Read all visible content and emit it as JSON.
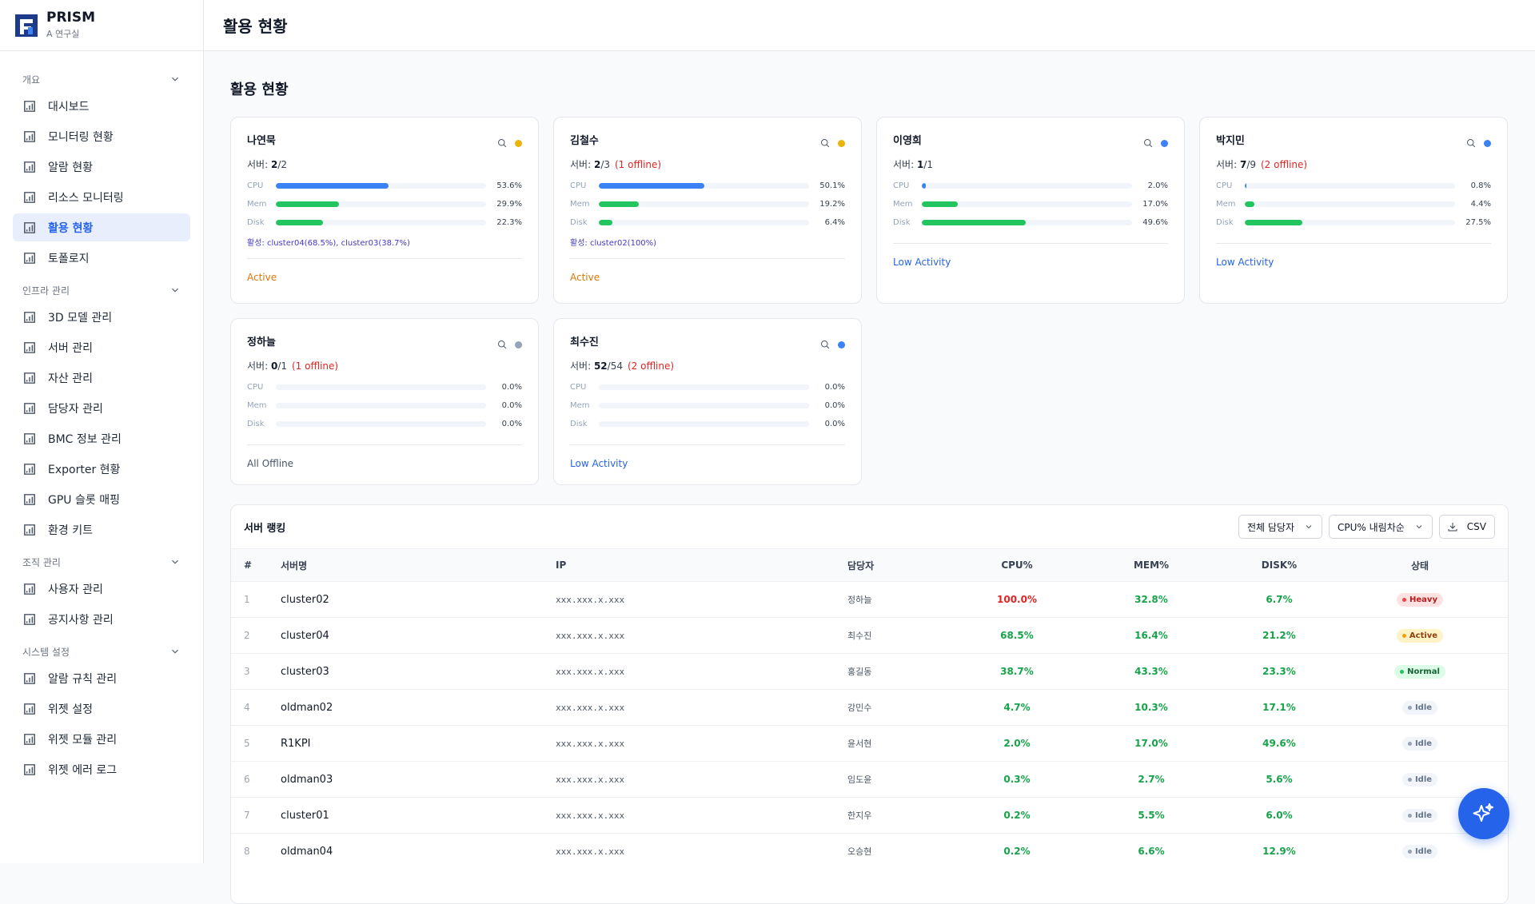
{
  "header": {
    "brand": "PRISM",
    "org": "A 연구실",
    "title": "활용 현황"
  },
  "sidebar": {
    "active": "활용 현황",
    "groups": [
      {
        "title": "개요",
        "items": [
          "대시보드",
          "모니터링 현황",
          "알람 현황",
          "리소스 모니터링",
          "활용 현황",
          "토폴로지"
        ]
      },
      {
        "title": "인프라 관리",
        "items": [
          "3D 모델 관리",
          "서버 관리",
          "자산 관리",
          "담당자 관리",
          "BMC 정보 관리",
          "Exporter 현황",
          "GPU 슬롯 매핑",
          "환경 키트"
        ]
      },
      {
        "title": "조직 관리",
        "items": [
          "사용자 관리",
          "공지사항 관리"
        ]
      },
      {
        "title": "시스템 설정",
        "items": [
          "알람 규칙 관리",
          "위젯 설정",
          "위젯 모듈 관리",
          "위젯 에러 로그"
        ]
      }
    ]
  },
  "content": {
    "title": "활용 현황",
    "server_label": "서버:",
    "metric_labels": [
      "CPU",
      "Mem",
      "Disk"
    ],
    "metric_colors": [
      "#3b82f6",
      "#22c55e",
      "#22c55e"
    ],
    "cards": [
      {
        "name": "나연묵",
        "dot": "#eab308",
        "up": "2",
        "total": "/2",
        "metrics": [
          53.6,
          29.9,
          22.3
        ],
        "value_labels": [
          "53.6%",
          "29.9%",
          "22.3%"
        ],
        "active": "활성: cluster04(68.5%), cluster03(38.7%)",
        "status": "Active",
        "status_color": "#d97706"
      },
      {
        "name": "김철수",
        "dot": "#eab308",
        "up": "2",
        "total": "/3",
        "offline": "(1 offline)",
        "metrics": [
          50.1,
          19.2,
          6.4
        ],
        "value_labels": [
          "50.1%",
          "19.2%",
          "6.4%"
        ],
        "active": "활성: cluster02(100%)",
        "status": "Active",
        "status_color": "#d97706"
      },
      {
        "name": "이영희",
        "dot": "#3b82f6",
        "up": "1",
        "total": "/1",
        "metrics": [
          2.0,
          17.0,
          49.6
        ],
        "value_labels": [
          "2.0%",
          "17.0%",
          "49.6%"
        ],
        "status": "Low Activity",
        "status_color": "#2563eb"
      },
      {
        "name": "박지민",
        "dot": "#3b82f6",
        "up": "7",
        "total": "/9",
        "offline": "(2 offline)",
        "metrics": [
          0.8,
          4.4,
          27.5
        ],
        "value_labels": [
          "0.8%",
          "4.4%",
          "27.5%"
        ],
        "status": "Low Activity",
        "status_color": "#2563eb"
      },
      {
        "name": "정하늘",
        "dot": "#94a3b8",
        "up": "0",
        "total": "/1",
        "offline": "(1 offline)",
        "metrics": [
          0.0,
          0.0,
          0.0
        ],
        "value_labels": [
          "0.0%",
          "0.0%",
          "0.0%"
        ],
        "status": "All Offline",
        "status_color": "#475569"
      },
      {
        "name": "최수진",
        "dot": "#3b82f6",
        "up": "52",
        "total": "/54",
        "offline": "(2 offline)",
        "metrics": [
          0.0,
          0.0,
          0.0
        ],
        "value_labels": [
          "0.0%",
          "0.0%",
          "0.0%"
        ],
        "status": "Low Activity",
        "status_color": "#2563eb"
      }
    ]
  },
  "table": {
    "title": "서버 랭킹",
    "filters": [
      "전체 담당자",
      "CPU% 내림차순"
    ],
    "button": "CSV",
    "headers": [
      "#",
      "서버명",
      "IP",
      "담당자",
      "CPU%",
      "MEM%",
      "DISK%",
      "상태"
    ],
    "rows": [
      [
        "1",
        "cluster02",
        "xxx.xxx.x.xxx",
        "정하늘",
        "100.0%",
        "32.8%",
        "6.7%",
        "Heavy"
      ],
      [
        "2",
        "cluster04",
        "xxx.xxx.x.xxx",
        "최수진",
        "68.5%",
        "16.4%",
        "21.2%",
        "Active"
      ],
      [
        "3",
        "cluster03",
        "xxx.xxx.x.xxx",
        "홍길동",
        "38.7%",
        "43.3%",
        "23.3%",
        "Normal"
      ],
      [
        "4",
        "oldman02",
        "xxx.xxx.x.xxx",
        "강민수",
        "4.7%",
        "10.3%",
        "17.1%",
        "Idle"
      ],
      [
        "5",
        "R1KPI",
        "xxx.xxx.x.xxx",
        "윤서현",
        "2.0%",
        "17.0%",
        "49.6%",
        "Idle"
      ],
      [
        "6",
        "oldman03",
        "xxx.xxx.x.xxx",
        "임도윤",
        "0.3%",
        "2.7%",
        "5.6%",
        "Idle"
      ],
      [
        "7",
        "cluster01",
        "xxx.xxx.x.xxx",
        "한지우",
        "0.2%",
        "5.5%",
        "6.0%",
        "Idle"
      ],
      [
        "8",
        "oldman04",
        "xxx.xxx.x.xxx",
        "오승현",
        "0.2%",
        "6.6%",
        "12.9%",
        "Idle"
      ]
    ],
    "cpu_colors": [
      "#dc2626",
      "#16a34a",
      "#16a34a",
      "#16a34a",
      "#16a34a",
      "#16a34a",
      "#16a34a",
      "#16a34a"
    ],
    "status_styles": {
      "Heavy": {
        "bg": "#fee2e2",
        "fg": "#b91c1c",
        "dot": "#ef4444"
      },
      "Active": {
        "bg": "#fef3c7",
        "fg": "#92400e",
        "dot": "#f59e0b"
      },
      "Normal": {
        "bg": "#dcfce7",
        "fg": "#166534",
        "dot": "#22c55e"
      },
      "Idle": {
        "bg": "#f1f5f9",
        "fg": "#64748b",
        "dot": "#94a3b8"
      }
    }
  }
}
